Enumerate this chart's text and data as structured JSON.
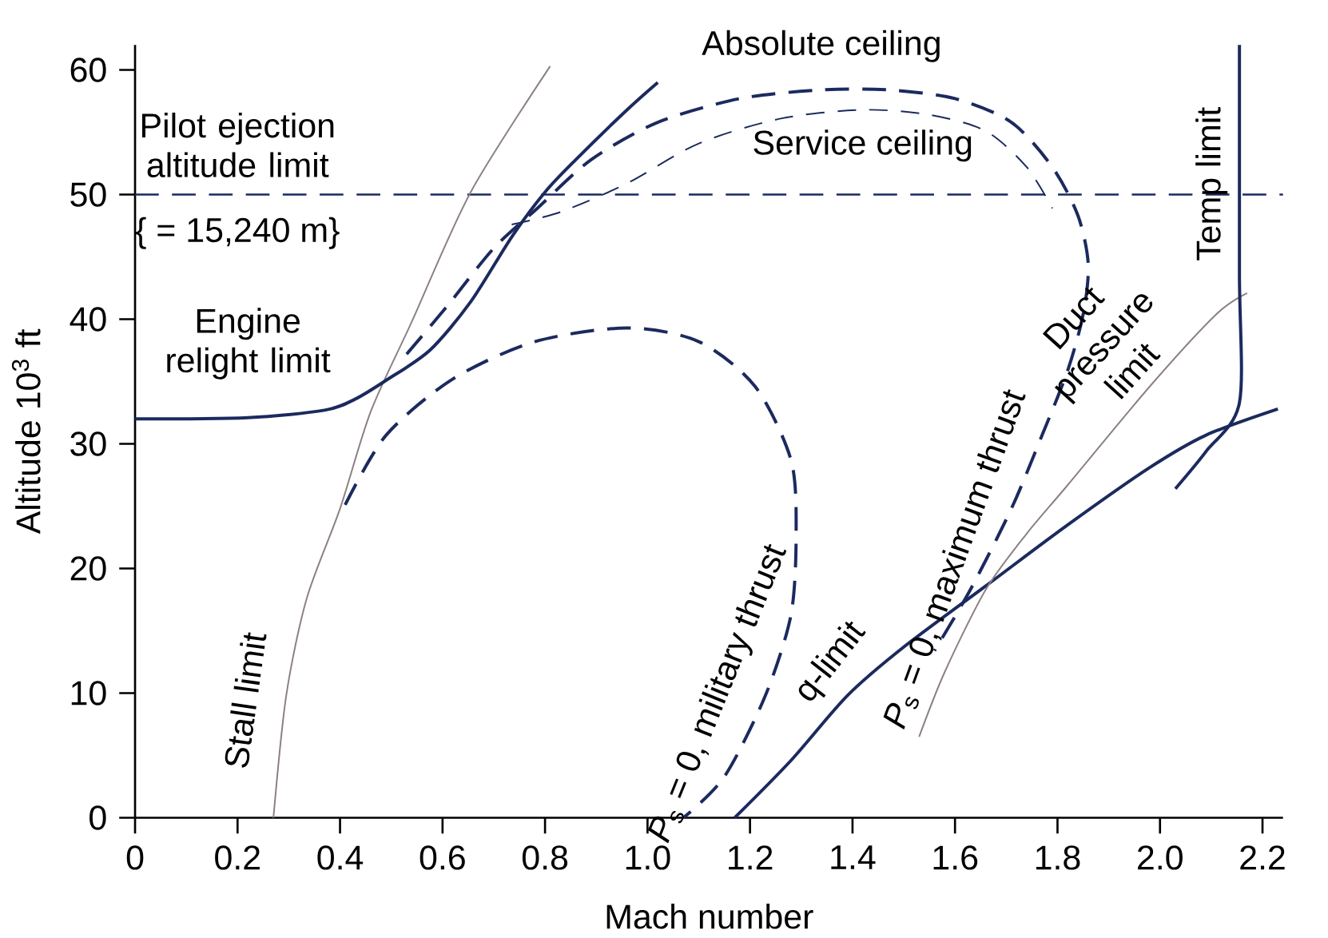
{
  "chart_data": {
    "type": "line",
    "xlabel": "Mach number",
    "ylabel": "Altitude 10$^{3}$ ft",
    "xlim": [
      0,
      2.24
    ],
    "ylim": [
      0,
      62
    ],
    "xticks": [
      0,
      0.2,
      0.4,
      0.6,
      0.8,
      {
        "value": 1,
        "label": "1.0"
      },
      1.2,
      1.4,
      1.6,
      1.8,
      {
        "value": 2,
        "label": "2.0"
      },
      2.2
    ],
    "yticks": [
      0,
      10,
      20,
      30,
      40,
      50,
      60
    ],
    "series": [
      {
        "name": "Stall limit",
        "color": "#8c8080",
        "line_style": "solid",
        "x": [
          0.27,
          0.295,
          0.335,
          0.4,
          0.46,
          0.54,
          0.655,
          0.81
        ],
        "values": [
          0,
          9.8,
          17.6,
          24.8,
          32.6,
          39.8,
          50.2,
          60.3
        ]
      },
      {
        "name": "Engine relight limit",
        "color": "#1b2a5e",
        "line_style": "solid",
        "x": [
          0,
          0.22,
          0.37,
          0.43,
          0.49,
          0.575,
          0.655,
          0.735,
          0.8,
          0.86,
          0.96,
          1.02
        ],
        "values": [
          32,
          32.1,
          32.7,
          33.6,
          35.1,
          37.5,
          41.4,
          46.6,
          50.2,
          52.8,
          56.8,
          59
        ]
      },
      {
        "name": "Absolute ceiling",
        "color": "#1b2a5e",
        "line_style": "dashed",
        "x": [
          0.53,
          0.61,
          0.7,
          0.785,
          0.89,
          1.02,
          1.18,
          1.34,
          1.47,
          1.6,
          1.71,
          1.79,
          1.84,
          1.86,
          1.85,
          1.82,
          1.77,
          1.71,
          1.63,
          1.56
        ],
        "values": [
          37.2,
          41.1,
          45.7,
          48.9,
          52.8,
          55.8,
          57.7,
          58.4,
          58.4,
          57.7,
          55.8,
          52.2,
          48.3,
          44.4,
          40.4,
          35.9,
          30.7,
          24.8,
          18.3,
          13.4
        ]
      },
      {
        "name": "Service ceiling",
        "color": "#1b2a5e",
        "line_style": "dashed",
        "x": [
          0.735,
          0.83,
          0.96,
          1.1,
          1.26,
          1.42,
          1.55,
          1.66,
          1.74,
          1.79
        ],
        "values": [
          47.6,
          48.6,
          50.9,
          54.1,
          56.1,
          56.8,
          56.4,
          55.1,
          52.2,
          48.9
        ]
      },
      {
        "name": "*P*$_{s}$ = 0, military thrust",
        "color": "#1b2a5e",
        "line_style": "dashed",
        "x": [
          0.41,
          0.49,
          0.62,
          0.78,
          0.96,
          1.1,
          1.21,
          1.28,
          1.29,
          1.28,
          1.23,
          1.15,
          1.07
        ],
        "values": [
          25.1,
          30.7,
          35.2,
          38.2,
          39.3,
          38.2,
          34.6,
          28.7,
          22.8,
          16.3,
          9.8,
          3.3,
          0
        ]
      },
      {
        "name": "q-limit",
        "color": "#1b2a5e",
        "line_style": "solid",
        "x": [
          1.17,
          1.28,
          1.39,
          1.5,
          1.66,
          1.82,
          1.98,
          2.09,
          2.23
        ],
        "values": [
          0,
          4.6,
          9.8,
          13.7,
          18.6,
          23.5,
          28.1,
          30.7,
          32.8
        ]
      },
      {
        "name": "Duct pressure limit",
        "color": "#8c8080",
        "line_style": "solid",
        "x": [
          1.53,
          1.58,
          1.66,
          1.74,
          1.82,
          1.98,
          2.11,
          2.17
        ],
        "values": [
          6.5,
          11.7,
          18.3,
          22.8,
          26.7,
          34.6,
          40.4,
          42.1
        ]
      },
      {
        "name": "Temp limit",
        "color": "#1b2a5e",
        "line_style": "solid",
        "x": [
          2.03,
          2.09,
          2.155,
          2.155,
          2.155
        ],
        "values": [
          26.4,
          29.4,
          33.3,
          43.7,
          62
        ]
      }
    ],
    "ref_lines": [
      {
        "axis": "y",
        "value": 50,
        "label": "Pilot ejection altitude limit",
        "color": "#1b2a5e",
        "line_style": "dashed"
      }
    ],
    "annotations": [
      "{ = 15,240 m}",
      {
        "text": "*P*$_{s}$ = 0, maximum thrust",
        "x": 1.65,
        "y": 20
      }
    ],
    "grid": false
  }
}
